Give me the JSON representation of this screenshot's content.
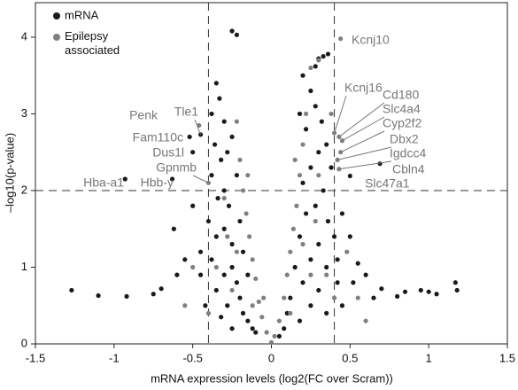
{
  "chart_data": {
    "type": "scatter",
    "xlabel": "mRNA expression levels (log2(FC over Scram))",
    "ylabel": "–log10(p-value)",
    "xlim": [
      -1.5,
      1.5
    ],
    "ylim": [
      0,
      4.45
    ],
    "xticks": [
      -1.5,
      -1,
      -0.5,
      0,
      0.5,
      1,
      1.5
    ],
    "yticks": [
      0,
      1,
      2,
      3,
      4
    ],
    "vlines": [
      -0.4,
      0.4
    ],
    "hline": 2,
    "legend": "upper left",
    "series": [
      {
        "name": "mRNA",
        "color": "#1a1a1a",
        "x": [
          -0.25,
          -0.22,
          0.36,
          0.33,
          0.3,
          0.28,
          -1.27,
          -1.1,
          -0.92,
          -0.75,
          -0.7,
          -0.62,
          -0.55,
          -0.6,
          -0.5,
          -0.45,
          0.6,
          0.7,
          0.8,
          0.85,
          0.95,
          1.0,
          1.05,
          1.17,
          1.18,
          0.55,
          0.5,
          0.45,
          0.52,
          0.65,
          -0.35,
          -0.33,
          -0.38,
          -0.3,
          -0.36,
          -0.32,
          -0.28,
          -0.38,
          -0.34,
          -0.3,
          -0.27,
          -0.4,
          -0.35,
          -0.3,
          -0.25,
          -0.38,
          -0.3,
          -0.25,
          -0.22,
          -0.2,
          -0.35,
          -0.28,
          -0.18,
          -0.15,
          -0.12,
          -0.1,
          -0.25,
          -0.32,
          -0.42,
          -0.45,
          -0.22,
          -0.25,
          -0.2,
          -0.18,
          -0.15,
          0.2,
          0.25,
          0.18,
          0.22,
          0.28,
          0.32,
          0.3,
          0.25,
          0.35,
          0.38,
          0.2,
          0.33,
          0.28,
          0.36,
          0.22,
          0.4,
          0.3,
          0.18,
          0.25,
          0.35,
          0.15,
          0.2,
          0.3,
          0.42,
          0.12,
          0.25,
          0.1,
          0.08,
          0.18,
          0.35,
          0.05,
          0.42,
          0.45,
          0.69,
          0.5,
          -0.45,
          -0.5,
          -0.93,
          -0.63,
          -0.52
        ],
        "y": [
          4.08,
          4.03,
          3.78,
          3.75,
          3.72,
          3.62,
          0.7,
          0.63,
          0.62,
          0.65,
          0.72,
          1.5,
          1.1,
          0.9,
          1.8,
          1.2,
          0.9,
          0.72,
          0.62,
          0.68,
          0.7,
          0.68,
          0.65,
          0.8,
          0.7,
          1.05,
          1.4,
          1.7,
          0.8,
          0.6,
          3.4,
          3.2,
          3.0,
          2.9,
          2.6,
          2.4,
          2.5,
          2.2,
          1.9,
          2.0,
          1.8,
          1.6,
          1.4,
          1.5,
          1.3,
          1.1,
          0.9,
          1.0,
          0.8,
          0.6,
          0.7,
          0.5,
          0.4,
          0.3,
          0.2,
          0.15,
          0.2,
          0.35,
          0.5,
          0.9,
          2.2,
          2.7,
          1.6,
          1.2,
          0.9,
          3.5,
          3.3,
          3.0,
          2.8,
          3.1,
          2.9,
          2.5,
          2.3,
          2.6,
          2.3,
          2.1,
          2.0,
          1.8,
          1.6,
          1.7,
          1.4,
          1.3,
          1.4,
          1.1,
          1.0,
          1.0,
          0.8,
          0.7,
          0.8,
          0.6,
          0.5,
          0.4,
          0.2,
          0.3,
          0.4,
          0.1,
          1.1,
          0.5,
          2.35,
          2.19,
          2.73,
          2.5,
          2.15,
          2.15,
          2.7
        ]
      },
      {
        "name": "Epilepsy associated",
        "color": "#808080",
        "x": [
          0,
          0.02,
          -0.03,
          0.05,
          -0.06,
          0.08,
          -0.08,
          0.1,
          -0.1,
          0.12,
          -0.12,
          0.14,
          -0.14,
          0.16,
          -0.16,
          0.18,
          -0.18,
          0.2,
          -0.2,
          0.22,
          -0.22,
          0.25,
          0.3,
          0.15,
          -0.15,
          0.12,
          -0.12,
          0.25,
          -0.25,
          0.2,
          -0.22,
          0.28,
          -0.28,
          0.3,
          -0.3,
          0.35,
          -0.35,
          0.4,
          -0.4,
          0.44,
          0.4,
          0.43,
          0.45,
          0.44,
          0.42,
          0.43,
          -0.46,
          -0.4,
          0.38,
          -0.55,
          0.55,
          0.48,
          -0.5,
          0.6,
          -0.05
        ],
        "y": [
          0.02,
          0.1,
          0.15,
          0.3,
          0.35,
          0.6,
          0.55,
          0.9,
          0.85,
          1.2,
          1.1,
          1.5,
          1.4,
          1.8,
          1.7,
          2.2,
          2.0,
          2.6,
          2.4,
          3.0,
          2.9,
          3.6,
          3.7,
          2.4,
          2.2,
          0.4,
          0.5,
          0.9,
          0.7,
          1.3,
          1.2,
          1.6,
          1.4,
          2.2,
          1.9,
          0.9,
          1.0,
          0.6,
          0.4,
          3.98,
          2.75,
          2.7,
          2.65,
          2.5,
          2.4,
          2.28,
          2.85,
          2.1,
          3.0,
          0.5,
          0.6,
          1.2,
          1.0,
          0.3,
          0.6
        ]
      }
    ],
    "annotations": [
      {
        "text": "Kcnj10",
        "x": 0.44,
        "y": 3.98
      },
      {
        "text": "Kcnj16",
        "x": 0.4,
        "y": 2.75
      },
      {
        "text": "Cd180",
        "x": 0.43,
        "y": 2.7
      },
      {
        "text": "Slc4a4",
        "x": 0.45,
        "y": 2.65
      },
      {
        "text": "Cyp2f2",
        "x": 0.44,
        "y": 2.5
      },
      {
        "text": "Dbx2",
        "x": 0.42,
        "y": 2.4
      },
      {
        "text": "Igdcc4",
        "x": 0.43,
        "y": 2.28
      },
      {
        "text": "Cbln4",
        "x": 0.69,
        "y": 2.35
      },
      {
        "text": "Slc47a1",
        "x": 0.5,
        "y": 2.19
      },
      {
        "text": "Tle1",
        "x": -0.45,
        "y": 2.73
      },
      {
        "text": "Penk",
        "x": -0.46,
        "y": 2.85
      },
      {
        "text": "Fam110c",
        "x": -0.52,
        "y": 2.7
      },
      {
        "text": "Dus1l",
        "x": -0.5,
        "y": 2.5
      },
      {
        "text": "Gpnmb",
        "x": -0.4,
        "y": 2.1
      },
      {
        "text": "Hbb-y",
        "x": -0.63,
        "y": 2.15
      },
      {
        "text": "Hba-a1",
        "x": -0.93,
        "y": 2.15
      }
    ]
  }
}
